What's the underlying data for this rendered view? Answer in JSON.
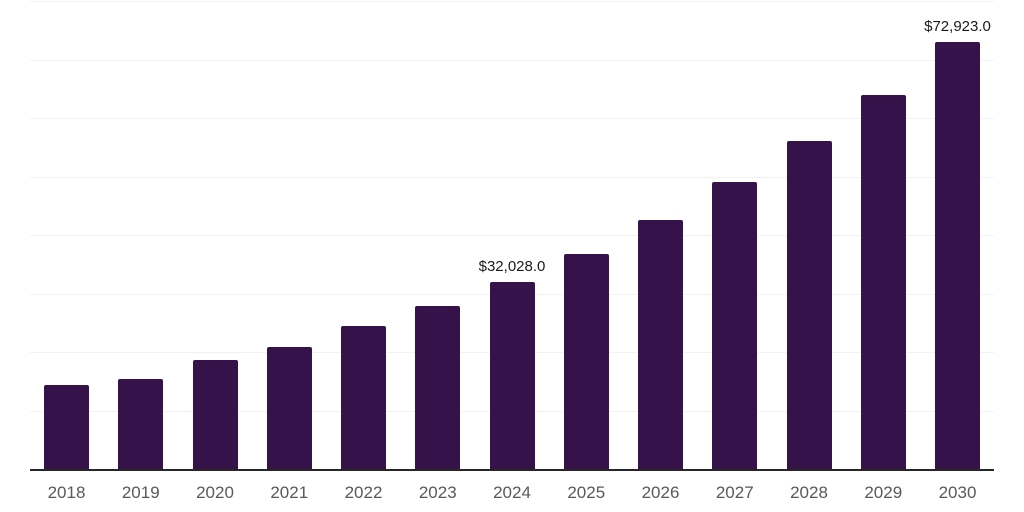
{
  "chart_data": {
    "type": "bar",
    "title": "",
    "xlabel": "",
    "ylabel": "",
    "categories": [
      "2018",
      "2019",
      "2020",
      "2021",
      "2022",
      "2023",
      "2024",
      "2025",
      "2026",
      "2027",
      "2028",
      "2029",
      "2030"
    ],
    "values": [
      14400,
      15300,
      18700,
      20900,
      24400,
      27800,
      32028,
      36800,
      42500,
      49000,
      56000,
      64000,
      72923
    ],
    "point_labels": [
      "",
      "",
      "",
      "",
      "",
      "",
      "$32,028.0",
      "",
      "",
      "",
      "",
      "",
      "$72,923.0"
    ],
    "ylim": [
      0,
      80000
    ],
    "gridline_step": 10000,
    "grid": "horizontal",
    "legend": "none",
    "y_axis_tick_labels": "none",
    "colors": {
      "bar": "#36124A",
      "axis_line": "#262626",
      "gridline": "#f2f2f2",
      "tick_label": "#595959",
      "data_label": "#1a1a1a",
      "background": "#ffffff"
    }
  }
}
